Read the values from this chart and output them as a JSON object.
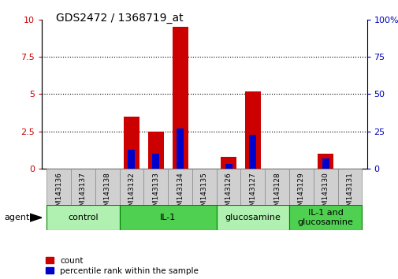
{
  "title": "GDS2472 / 1368719_at",
  "samples": [
    "GSM143136",
    "GSM143137",
    "GSM143138",
    "GSM143132",
    "GSM143133",
    "GSM143134",
    "GSM143135",
    "GSM143126",
    "GSM143127",
    "GSM143128",
    "GSM143129",
    "GSM143130",
    "GSM143131"
  ],
  "red_values": [
    0.0,
    0.0,
    0.0,
    3.5,
    2.5,
    9.5,
    0.0,
    0.8,
    5.2,
    0.0,
    0.0,
    1.0,
    0.0
  ],
  "blue_values_pct": [
    0,
    0,
    0,
    13,
    10,
    27,
    0,
    3,
    23,
    0,
    0,
    7,
    0
  ],
  "groups": [
    {
      "label": "control",
      "indices": [
        0,
        1,
        2
      ],
      "color": "#90EE90"
    },
    {
      "label": "IL-1",
      "indices": [
        3,
        4,
        5,
        6
      ],
      "color": "#50C850"
    },
    {
      "label": "glucosamine",
      "indices": [
        7,
        8,
        9
      ],
      "color": "#90EE90"
    },
    {
      "label": "IL-1 and\nglucosamine",
      "indices": [
        10,
        11,
        12
      ],
      "color": "#50C850"
    }
  ],
  "ylim_left": [
    0,
    10
  ],
  "ylim_right": [
    0,
    100
  ],
  "left_yticks": [
    0,
    2.5,
    5.0,
    7.5,
    10
  ],
  "left_yticklabels": [
    "0",
    "2.5",
    "5",
    "7.5",
    "10"
  ],
  "right_yticks": [
    0,
    25,
    50,
    75,
    100
  ],
  "right_yticklabels": [
    "0",
    "25",
    "50",
    "75",
    "100%"
  ],
  "bar_width": 0.65,
  "red_color": "#CC0000",
  "blue_color": "#0000CC",
  "tick_label_color_left": "#CC0000",
  "tick_label_color_right": "#0000BB",
  "sample_bg": "#d0d0d0",
  "group_colors": [
    "#b0f0b0",
    "#50d050",
    "#b0f0b0",
    "#50d050"
  ],
  "group_border": "#008000"
}
